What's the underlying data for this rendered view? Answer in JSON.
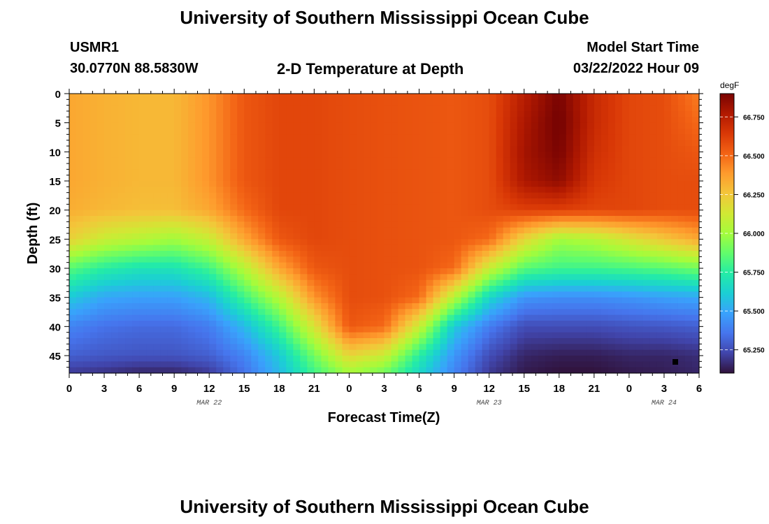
{
  "page": {
    "title": "University of Southern Mississippi Ocean Cube",
    "bottom_title": "University of Southern Mississippi Ocean Cube",
    "station": "USMR1",
    "location": "30.0770N  88.5830W",
    "subtitle": "2-D Temperature at Depth",
    "model_start_label": "Model Start Time",
    "model_start_value": "03/22/2022 Hour 09"
  },
  "colors": {
    "colormap": [
      "#30123b",
      "#4145ab",
      "#4675ed",
      "#39a2fc",
      "#1bcfd4",
      "#24eca6",
      "#61fc6c",
      "#a4fc3b",
      "#d1e834",
      "#f3c63a",
      "#fe9b2d",
      "#f36315",
      "#d93806",
      "#b11901",
      "#7a0402"
    ]
  },
  "chart_data": {
    "type": "heatmap",
    "title": "2-D Temperature at Depth",
    "xlabel": "Forecast Time(Z)",
    "ylabel": "Depth (ft)",
    "xlim": [
      0,
      54
    ],
    "ylim": [
      48,
      0
    ],
    "x_ticks": [
      0,
      3,
      6,
      9,
      12,
      15,
      18,
      21,
      24,
      27,
      30,
      33,
      36,
      39,
      42,
      45,
      48,
      51,
      54
    ],
    "x_tick_labels": [
      "0",
      "3",
      "6",
      "9",
      "12",
      "15",
      "18",
      "21",
      "0",
      "3",
      "6",
      "9",
      "12",
      "15",
      "18",
      "21",
      "0",
      "3",
      "6"
    ],
    "y_ticks": [
      0,
      5,
      10,
      15,
      20,
      25,
      30,
      35,
      40,
      45
    ],
    "y_tick_labels": [
      "0",
      "5",
      "10",
      "15",
      "20",
      "25",
      "30",
      "35",
      "40",
      "45"
    ],
    "date_labels": [
      {
        "x": 12,
        "label": "MAR 22"
      },
      {
        "x": 36,
        "label": "MAR 23"
      },
      {
        "x": 51,
        "label": "MAR 24"
      }
    ],
    "colorbar": {
      "units": "degF",
      "min": 65.1,
      "max": 66.9,
      "ticks": [
        65.25,
        65.5,
        65.75,
        66.0,
        66.25,
        66.5,
        66.75
      ],
      "tick_labels": [
        "65.250",
        "65.500",
        "65.750",
        "66.000",
        "66.250",
        "66.500",
        "66.750"
      ]
    },
    "x": [
      0,
      3,
      6,
      9,
      12,
      15,
      18,
      21,
      24,
      27,
      30,
      33,
      36,
      39,
      42,
      45,
      48,
      51,
      54
    ],
    "y": [
      0,
      5,
      10,
      15,
      20,
      25,
      30,
      35,
      40,
      45,
      48
    ],
    "values": [
      [
        66.35,
        66.32,
        66.3,
        66.3,
        66.4,
        66.55,
        66.6,
        66.6,
        66.58,
        66.57,
        66.56,
        66.55,
        66.58,
        66.75,
        66.9,
        66.7,
        66.6,
        66.58,
        66.45
      ],
      [
        66.35,
        66.32,
        66.3,
        66.3,
        66.4,
        66.55,
        66.6,
        66.6,
        66.58,
        66.57,
        66.56,
        66.55,
        66.58,
        66.78,
        66.92,
        66.7,
        66.6,
        66.58,
        66.5
      ],
      [
        66.35,
        66.32,
        66.3,
        66.3,
        66.4,
        66.55,
        66.6,
        66.6,
        66.58,
        66.57,
        66.56,
        66.55,
        66.58,
        66.8,
        66.9,
        66.68,
        66.6,
        66.58,
        66.55
      ],
      [
        66.35,
        66.32,
        66.3,
        66.3,
        66.4,
        66.55,
        66.6,
        66.6,
        66.58,
        66.57,
        66.56,
        66.55,
        66.58,
        66.78,
        66.85,
        66.65,
        66.6,
        66.58,
        66.58
      ],
      [
        66.33,
        66.3,
        66.28,
        66.28,
        66.35,
        66.5,
        66.6,
        66.6,
        66.58,
        66.57,
        66.56,
        66.55,
        66.58,
        66.62,
        66.62,
        66.6,
        66.6,
        66.58,
        66.58
      ],
      [
        66.22,
        66.1,
        66.05,
        66.0,
        66.1,
        66.35,
        66.55,
        66.6,
        66.58,
        66.57,
        66.56,
        66.55,
        66.5,
        66.2,
        66.0,
        66.05,
        66.15,
        66.25,
        66.35
      ],
      [
        65.85,
        65.75,
        65.7,
        65.7,
        65.8,
        66.05,
        66.35,
        66.55,
        66.58,
        66.57,
        66.56,
        66.5,
        66.1,
        65.85,
        65.8,
        65.8,
        65.82,
        65.85,
        65.9
      ],
      [
        65.6,
        65.5,
        65.48,
        65.48,
        65.55,
        65.8,
        66.05,
        66.4,
        66.58,
        66.57,
        66.5,
        66.05,
        65.65,
        65.45,
        65.43,
        65.43,
        65.45,
        65.48,
        65.5
      ],
      [
        65.4,
        65.35,
        65.33,
        65.33,
        65.38,
        65.55,
        65.8,
        66.15,
        66.55,
        66.5,
        66.1,
        65.6,
        65.38,
        65.25,
        65.25,
        65.25,
        65.27,
        65.28,
        65.3
      ],
      [
        65.3,
        65.28,
        65.27,
        65.27,
        65.3,
        65.4,
        65.6,
        65.9,
        66.2,
        66.1,
        65.75,
        65.45,
        65.25,
        65.15,
        65.13,
        65.13,
        65.15,
        65.15,
        65.17
      ],
      [
        65.2,
        65.18,
        65.15,
        65.15,
        65.2,
        65.35,
        65.55,
        65.8,
        66.0,
        65.9,
        65.65,
        65.4,
        65.2,
        65.12,
        65.1,
        65.1,
        65.12,
        65.13,
        65.15
      ]
    ]
  }
}
